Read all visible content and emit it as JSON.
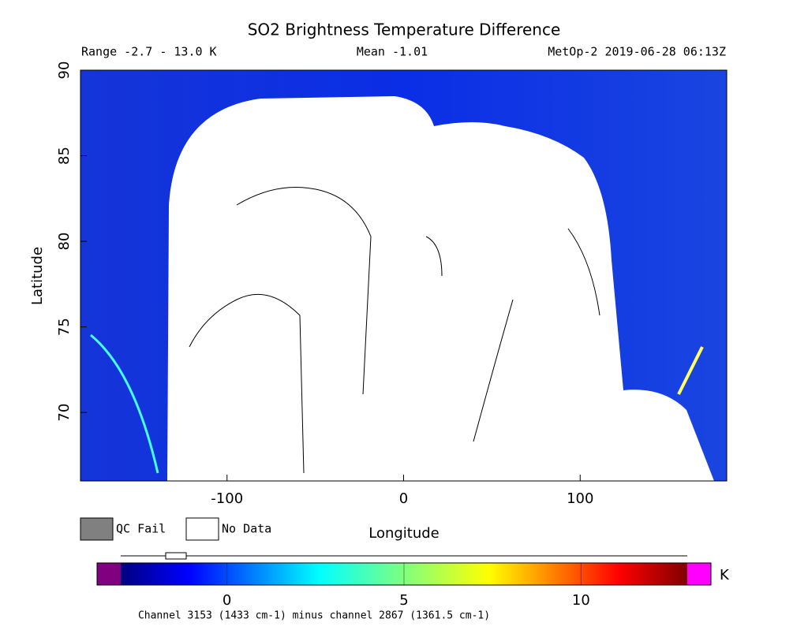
{
  "chart_data": {
    "type": "map",
    "title": "SO2 Brightness Temperature Difference",
    "range_label": "Range -2.7 - 13.0 K",
    "mean_label": "Mean -1.01",
    "source_label": "MetOp-2 2019-06-28 06:13Z",
    "x_label": "Longitude",
    "y_label": "Latitude",
    "xlim": [
      -183,
      183
    ],
    "xticks": [
      -100,
      0,
      100
    ],
    "ylim": [
      66,
      90
    ],
    "yticks": [
      70,
      75,
      80,
      85,
      90
    ],
    "legend": [
      "QC Fail",
      "No Data"
    ],
    "colorbar": {
      "lim": [
        -3,
        13
      ],
      "ticks": [
        0,
        5,
        10
      ],
      "unit": "K",
      "caption": "Channel 3153 (1433 cm-1) minus channel 2867 (1361.5 cm-1)"
    }
  }
}
